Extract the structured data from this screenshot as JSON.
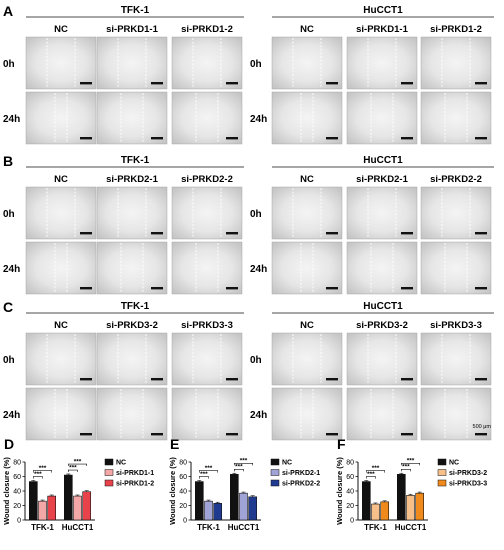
{
  "panels_wound": [
    {
      "letter": "A",
      "groups": [
        {
          "cell_line": "TFK-1",
          "conditions": [
            "NC",
            "si-PRKD1-1",
            "si-PRKD1-2"
          ]
        },
        {
          "cell_line": "HuCCT1",
          "conditions": [
            "NC",
            "si-PRKD1-1",
            "si-PRKD1-2"
          ]
        }
      ],
      "rows": [
        "0h",
        "24h"
      ]
    },
    {
      "letter": "B",
      "groups": [
        {
          "cell_line": "TFK-1",
          "conditions": [
            "NC",
            "si-PRKD2-1",
            "si-PRKD2-2"
          ]
        },
        {
          "cell_line": "HuCCT1",
          "conditions": [
            "NC",
            "si-PRKD2-1",
            "si-PRKD2-2"
          ]
        }
      ],
      "rows": [
        "0h",
        "24h"
      ]
    },
    {
      "letter": "C",
      "groups": [
        {
          "cell_line": "TFK-1",
          "conditions": [
            "NC",
            "si-PRKD3-2",
            "si-PRKD3-3"
          ]
        },
        {
          "cell_line": "HuCCT1",
          "conditions": [
            "NC",
            "si-PRKD3-2",
            "si-PRKD3-3"
          ]
        }
      ],
      "rows": [
        "0h",
        "24h"
      ],
      "scale_bar_label": "500 μm"
    }
  ],
  "chart_data": [
    {
      "letter": "D",
      "type": "bar",
      "ylabel": "Wound closure (%)",
      "ylim": [
        0,
        80
      ],
      "yticks": [
        0,
        20,
        40,
        60,
        80
      ],
      "categories": [
        "TFK-1",
        "HuCCT1"
      ],
      "legend_position": "right",
      "series": [
        {
          "name": "NC",
          "color": "#111111",
          "values": [
            53,
            62
          ]
        },
        {
          "name": "si-PRKD1-1",
          "color": "#f4a7a7",
          "values": [
            26,
            33
          ]
        },
        {
          "name": "si-PRKD1-2",
          "color": "#e8434a",
          "values": [
            33,
            39
          ]
        }
      ],
      "significance": "***"
    },
    {
      "letter": "E",
      "type": "bar",
      "ylabel": "Wound closure (%)",
      "ylim": [
        0,
        80
      ],
      "yticks": [
        0,
        20,
        40,
        60,
        80
      ],
      "categories": [
        "TFK-1",
        "HuCCT1"
      ],
      "legend_position": "right",
      "series": [
        {
          "name": "NC",
          "color": "#111111",
          "values": [
            53,
            63
          ]
        },
        {
          "name": "si-PRKD2-1",
          "color": "#9fa3d6",
          "values": [
            26,
            37
          ]
        },
        {
          "name": "si-PRKD2-2",
          "color": "#1f3a8f",
          "values": [
            23,
            32
          ]
        }
      ],
      "significance": "***"
    },
    {
      "letter": "F",
      "type": "bar",
      "ylabel": "Wound closure (%)",
      "ylim": [
        0,
        80
      ],
      "yticks": [
        0,
        20,
        40,
        60,
        80
      ],
      "categories": [
        "TFK-1",
        "HuCCT1"
      ],
      "legend_position": "right",
      "series": [
        {
          "name": "NC",
          "color": "#111111",
          "values": [
            53,
            63
          ]
        },
        {
          "name": "si-PRKD3-2",
          "color": "#f7c08a",
          "values": [
            22,
            34
          ]
        },
        {
          "name": "si-PRKD3-3",
          "color": "#f08a1c",
          "values": [
            25,
            37
          ]
        }
      ],
      "significance": "***"
    }
  ]
}
